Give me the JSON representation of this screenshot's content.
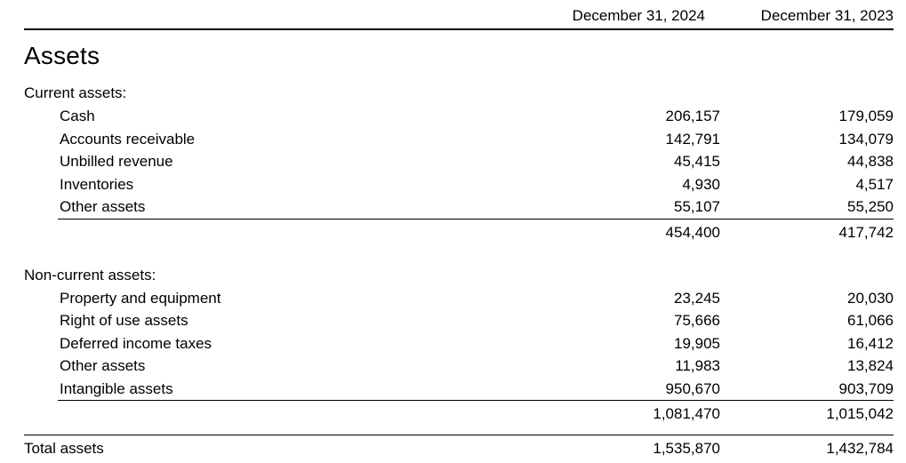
{
  "report": {
    "column_headers": {
      "col2024": "December 31, 2024",
      "col2023": "December 31, 2023"
    },
    "section_title": "Assets",
    "groups": [
      {
        "label": "Current assets:",
        "rows": [
          {
            "label": "Cash",
            "v2024": "206,157",
            "v2023": "179,059"
          },
          {
            "label": "Accounts receivable",
            "v2024": "142,791",
            "v2023": "134,079"
          },
          {
            "label": "Unbilled revenue",
            "v2024": "45,415",
            "v2023": "44,838"
          },
          {
            "label": "Inventories",
            "v2024": "4,930",
            "v2023": "4,517"
          },
          {
            "label": "Other assets",
            "v2024": "55,107",
            "v2023": "55,250"
          }
        ],
        "subtotal": {
          "v2024": "454,400",
          "v2023": "417,742"
        }
      },
      {
        "label": "Non-current assets:",
        "rows": [
          {
            "label": "Property and equipment",
            "v2024": "23,245",
            "v2023": "20,030"
          },
          {
            "label": "Right of use assets",
            "v2024": "75,666",
            "v2023": "61,066"
          },
          {
            "label": "Deferred income taxes",
            "v2024": "19,905",
            "v2023": "16,412"
          },
          {
            "label": "Other assets",
            "v2024": "11,983",
            "v2023": "13,824"
          },
          {
            "label": "Intangible assets",
            "v2024": "950,670",
            "v2023": "903,709"
          }
        ],
        "subtotal": {
          "v2024": "1,081,470",
          "v2023": "1,015,042"
        }
      }
    ],
    "total": {
      "label": "Total assets",
      "v2024": "1,535,870",
      "v2023": "1,432,784"
    }
  }
}
